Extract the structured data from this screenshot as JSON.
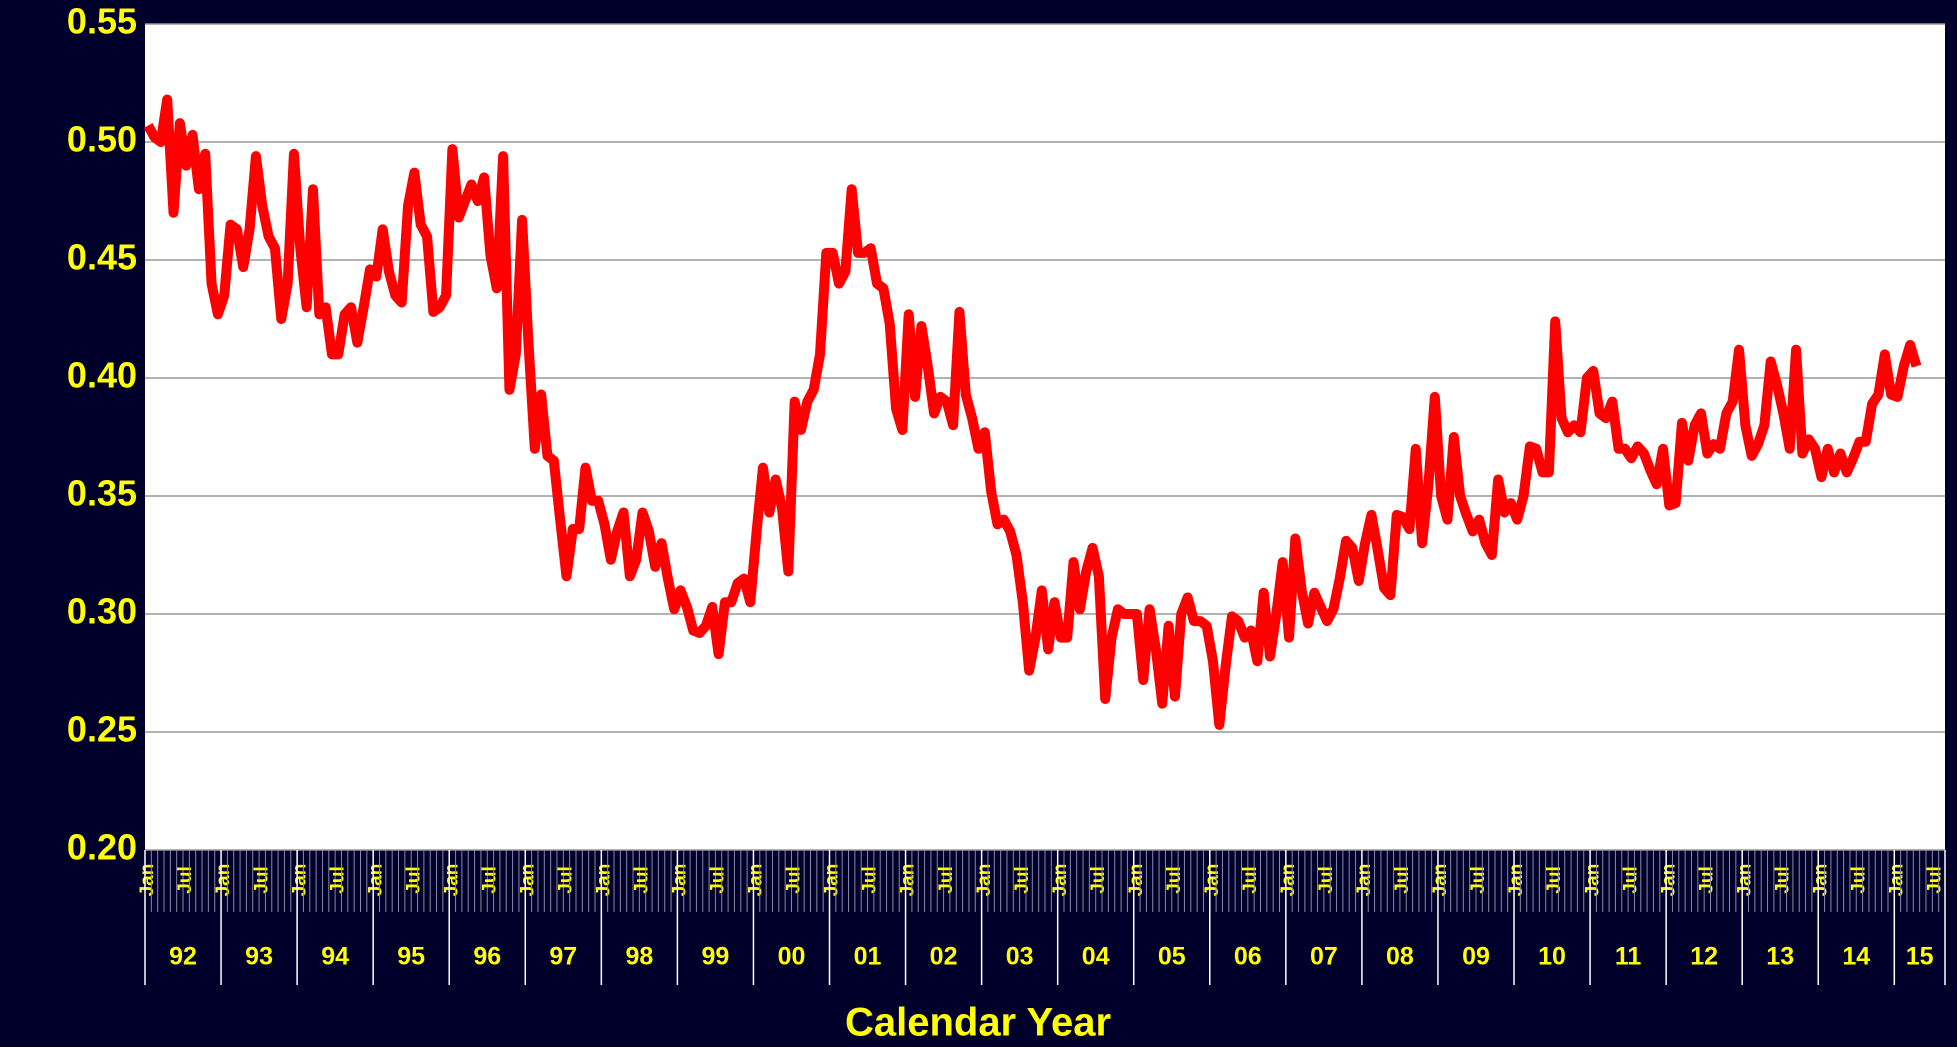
{
  "chart_data": {
    "type": "line",
    "x_label": "Calendar Year",
    "categories": [
      "Jan",
      null,
      null,
      null,
      null,
      null,
      "Jul",
      null,
      null,
      null,
      null,
      null,
      "Jan",
      null,
      null,
      null,
      null,
      null,
      "Jul",
      null,
      null,
      null,
      null,
      null,
      "Jan",
      null,
      null,
      null,
      null,
      null,
      "Jul",
      null,
      null,
      null,
      null,
      null,
      "Jan",
      null,
      null,
      null,
      null,
      null,
      "Jul",
      null,
      null,
      null,
      null,
      null,
      "Jan",
      null,
      null,
      null,
      null,
      null,
      "Jul",
      null,
      null,
      null,
      null,
      null,
      "Jan",
      null,
      null,
      null,
      null,
      null,
      "Jul",
      null,
      null,
      null,
      null,
      null,
      "Jan",
      null,
      null,
      null,
      null,
      null,
      "Jul",
      null,
      null,
      null,
      null,
      null,
      "Jan",
      null,
      null,
      null,
      null,
      null,
      "Jul",
      null,
      null,
      null,
      null,
      null,
      "Jan",
      null,
      null,
      null,
      null,
      null,
      "Jul",
      null,
      null,
      null,
      null,
      null,
      "Jan",
      null,
      null,
      null,
      null,
      null,
      "Jul",
      null,
      null,
      null,
      null,
      null,
      "Jan",
      null,
      null,
      null,
      null,
      null,
      "Jul",
      null,
      null,
      null,
      null,
      null,
      "Jan",
      null,
      null,
      null,
      null,
      null,
      "Jul",
      null,
      null,
      null,
      null,
      null,
      "Jan",
      null,
      null,
      null,
      null,
      null,
      "Jul",
      null,
      null,
      null,
      null,
      null,
      "Jan",
      null,
      null,
      null,
      null,
      null,
      "Jul",
      null,
      null,
      null,
      null,
      null,
      "Jan",
      null,
      null,
      null,
      null,
      null,
      "Jul",
      null,
      null,
      null,
      null,
      null,
      "Jan",
      null,
      null,
      null,
      null,
      null,
      "Jul",
      null,
      null,
      null,
      null,
      null,
      "Jan",
      null,
      null,
      null,
      null,
      null,
      "Jul",
      null,
      null,
      null,
      null,
      null,
      "Jan",
      null,
      null,
      null,
      null,
      null,
      "Jul",
      null,
      null,
      null,
      null,
      null,
      "Jan",
      null,
      null,
      null,
      null,
      null,
      "Jul",
      null,
      null,
      null,
      null,
      null,
      "Jan",
      null,
      null,
      null,
      null,
      null,
      "Jul",
      null,
      null,
      null,
      null,
      null,
      "Jan",
      null,
      null,
      null,
      null,
      null,
      "Jul",
      null,
      null,
      null,
      null,
      null,
      "Jan",
      null,
      null,
      null,
      null,
      null,
      "Jul",
      null,
      null,
      null,
      null,
      null,
      "Jan",
      null,
      null,
      null,
      null,
      null,
      "Jul",
      null,
      null,
      null,
      null,
      null,
      "Jan",
      null,
      null,
      null,
      null,
      null,
      "Jul",
      null
    ],
    "year_labels": [
      "92",
      "93",
      "94",
      "95",
      "96",
      "97",
      "98",
      "99",
      "00",
      "01",
      "02",
      "03",
      "04",
      "05",
      "06",
      "07",
      "08",
      "09",
      "10",
      "11",
      "12",
      "13",
      "14",
      "15"
    ],
    "series": [
      {
        "color": "#ff0000",
        "values": [
          0.507,
          0.502,
          0.5,
          0.518,
          0.47,
          0.508,
          0.49,
          0.503,
          0.48,
          0.495,
          0.44,
          0.427,
          0.435,
          0.465,
          0.463,
          0.447,
          0.463,
          0.494,
          0.473,
          0.46,
          0.455,
          0.425,
          0.44,
          0.495,
          0.455,
          0.43,
          0.48,
          0.427,
          0.43,
          0.41,
          0.41,
          0.427,
          0.43,
          0.415,
          0.43,
          0.446,
          0.443,
          0.463,
          0.445,
          0.435,
          0.432,
          0.473,
          0.487,
          0.465,
          0.46,
          0.428,
          0.43,
          0.435,
          0.497,
          0.468,
          0.475,
          0.482,
          0.475,
          0.485,
          0.452,
          0.438,
          0.494,
          0.395,
          0.41,
          0.467,
          0.415,
          0.37,
          0.393,
          0.367,
          0.365,
          0.34,
          0.316,
          0.336,
          0.336,
          0.362,
          0.348,
          0.348,
          0.338,
          0.323,
          0.335,
          0.343,
          0.316,
          0.323,
          0.343,
          0.335,
          0.32,
          0.33,
          0.315,
          0.302,
          0.31,
          0.303,
          0.293,
          0.292,
          0.295,
          0.303,
          0.283,
          0.305,
          0.305,
          0.313,
          0.315,
          0.305,
          0.335,
          0.362,
          0.343,
          0.357,
          0.345,
          0.318,
          0.39,
          0.378,
          0.39,
          0.395,
          0.41,
          0.453,
          0.453,
          0.44,
          0.445,
          0.48,
          0.453,
          0.453,
          0.455,
          0.44,
          0.438,
          0.423,
          0.387,
          0.378,
          0.427,
          0.392,
          0.422,
          0.405,
          0.385,
          0.392,
          0.39,
          0.38,
          0.428,
          0.393,
          0.383,
          0.37,
          0.377,
          0.352,
          0.338,
          0.34,
          0.335,
          0.325,
          0.305,
          0.276,
          0.29,
          0.31,
          0.285,
          0.305,
          0.29,
          0.29,
          0.322,
          0.302,
          0.318,
          0.328,
          0.316,
          0.264,
          0.29,
          0.302,
          0.3,
          0.3,
          0.3,
          0.272,
          0.302,
          0.285,
          0.262,
          0.295,
          0.265,
          0.3,
          0.307,
          0.297,
          0.297,
          0.295,
          0.28,
          0.253,
          0.278,
          0.299,
          0.297,
          0.29,
          0.293,
          0.28,
          0.309,
          0.282,
          0.3,
          0.322,
          0.29,
          0.332,
          0.31,
          0.296,
          0.309,
          0.303,
          0.297,
          0.302,
          0.315,
          0.331,
          0.328,
          0.314,
          0.33,
          0.342,
          0.327,
          0.311,
          0.308,
          0.342,
          0.341,
          0.336,
          0.37,
          0.33,
          0.355,
          0.392,
          0.35,
          0.34,
          0.375,
          0.35,
          0.342,
          0.335,
          0.34,
          0.33,
          0.325,
          0.357,
          0.343,
          0.347,
          0.34,
          0.35,
          0.371,
          0.37,
          0.36,
          0.36,
          0.424,
          0.383,
          0.377,
          0.38,
          0.377,
          0.4,
          0.403,
          0.385,
          0.383,
          0.39,
          0.37,
          0.37,
          0.366,
          0.371,
          0.368,
          0.361,
          0.355,
          0.37,
          0.346,
          0.347,
          0.381,
          0.365,
          0.38,
          0.385,
          0.368,
          0.372,
          0.37,
          0.385,
          0.39,
          0.412,
          0.38,
          0.367,
          0.372,
          0.38,
          0.407,
          0.397,
          0.385,
          0.37,
          0.412,
          0.368,
          0.374,
          0.37,
          0.358,
          0.37,
          0.36,
          0.368,
          0.36,
          0.366,
          0.373,
          0.373,
          0.389,
          0.393,
          0.41,
          0.393,
          0.392,
          0.405,
          0.414,
          0.405,
          null,
          null,
          null,
          null
        ]
      }
    ],
    "ylim": [
      0.2,
      0.55
    ],
    "yticks": [
      {
        "value": 0.2,
        "label": "0.20"
      },
      0.25,
      {
        "value": 0.3,
        "label": "0.30"
      },
      0.35,
      {
        "value": 0.4,
        "label": "0.40"
      },
      0.45,
      {
        "value": 0.5,
        "label": "0.50"
      },
      0.55
    ],
    "grid": true
  }
}
